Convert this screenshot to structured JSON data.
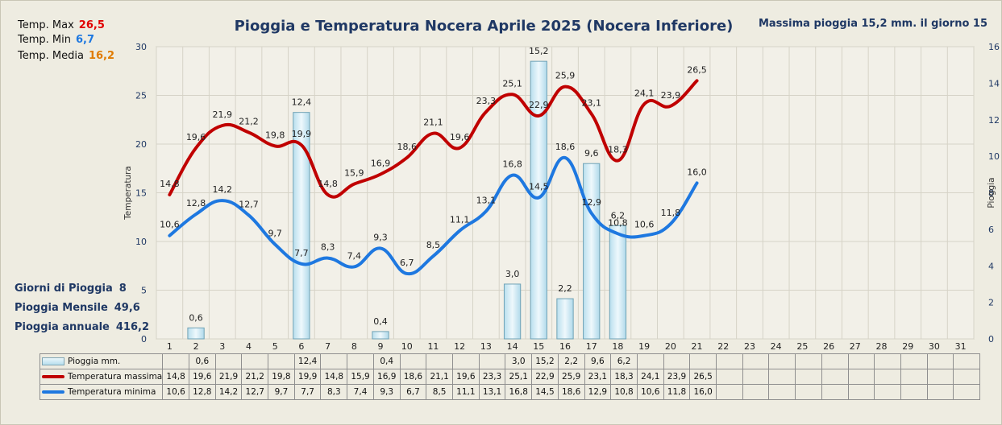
{
  "stats": {
    "max_label": "Temp. Max",
    "max_value": "26,5",
    "min_label": "Temp.  Min",
    "min_value": "6,7",
    "avg_label": "Temp. Media",
    "avg_value": "16,2"
  },
  "title": "Pioggia e Temperatura Nocera Aprile 2025 (Nocera Inferiore)",
  "max_rain": "Massima pioggia   15,2 mm. il giorno 15",
  "side": {
    "rain_days_label": "Giorni di Pioggia",
    "rain_days_value": "8",
    "monthly_label": "Pioggia Mensile",
    "monthly_value": "49,6",
    "annual_label": "Pioggia annuale",
    "annual_value": "416,2"
  },
  "colors": {
    "tmax": "#c00000",
    "tmin": "#1e78e0",
    "title": "#1f3864",
    "max_stat": "#e00000",
    "min_stat": "#1e78e0",
    "avg_stat": "#e07b00"
  },
  "chart_data": {
    "type": "bar+line",
    "days": [
      "1",
      "2",
      "3",
      "4",
      "5",
      "6",
      "7",
      "8",
      "9",
      "10",
      "11",
      "12",
      "13",
      "14",
      "15",
      "16",
      "17",
      "18",
      "19",
      "20",
      "21",
      "22",
      "23",
      "24",
      "25",
      "26",
      "27",
      "28",
      "29",
      "30",
      "31"
    ],
    "ylabel": "Temperatura",
    "y2label": "Pioggia",
    "ylim": [
      0,
      30
    ],
    "y2lim": [
      0,
      16
    ],
    "yticks": [
      "0",
      "5",
      "10",
      "15",
      "20",
      "25",
      "30"
    ],
    "y2ticks": [
      "0",
      "2",
      "4",
      "6",
      "8",
      "10",
      "12",
      "14",
      "16"
    ],
    "grid": true,
    "series": [
      {
        "name": "Pioggia mm.",
        "kind": "bar",
        "axis": "right",
        "values": [
          null,
          0.6,
          null,
          null,
          null,
          12.4,
          null,
          null,
          0.4,
          null,
          null,
          null,
          null,
          3.0,
          15.2,
          2.2,
          9.6,
          6.2,
          null,
          null,
          null,
          null,
          null,
          null,
          null,
          null,
          null,
          null,
          null,
          null,
          null
        ],
        "labels": [
          "",
          "0,6",
          "",
          "",
          "",
          "12,4",
          "",
          "",
          "0,4",
          "",
          "",
          "",
          "",
          "3,0",
          "15,2",
          "2,2",
          "9,6",
          "6,2",
          "",
          "",
          "",
          "",
          "",
          "",
          "",
          "",
          "",
          "",
          "",
          "",
          ""
        ]
      },
      {
        "name": "Temperatura massima",
        "kind": "line",
        "axis": "left",
        "values": [
          14.8,
          19.6,
          21.9,
          21.2,
          19.8,
          19.9,
          14.8,
          15.9,
          16.9,
          18.6,
          21.1,
          19.6,
          23.3,
          25.1,
          22.9,
          25.9,
          23.1,
          18.3,
          24.1,
          23.9,
          26.5,
          null,
          null,
          null,
          null,
          null,
          null,
          null,
          null,
          null,
          null
        ],
        "labels": [
          "14,8",
          "19,6",
          "21,9",
          "21,2",
          "19,8",
          "19,9",
          "14,8",
          "15,9",
          "16,9",
          "18,6",
          "21,1",
          "19,6",
          "23,3",
          "25,1",
          "22,9",
          "25,9",
          "23,1",
          "18,3",
          "24,1",
          "23,9",
          "26,5",
          "",
          "",
          "",
          "",
          "",
          "",
          "",
          "",
          "",
          ""
        ]
      },
      {
        "name": "Temperatura minima",
        "kind": "line",
        "axis": "left",
        "values": [
          10.6,
          12.8,
          14.2,
          12.7,
          9.7,
          7.7,
          8.3,
          7.4,
          9.3,
          6.7,
          8.5,
          11.1,
          13.1,
          16.8,
          14.5,
          18.6,
          12.9,
          10.8,
          10.6,
          11.8,
          16.0,
          null,
          null,
          null,
          null,
          null,
          null,
          null,
          null,
          null,
          null
        ],
        "labels": [
          "10,6",
          "12,8",
          "14,2",
          "12,7",
          "9,7",
          "7,7",
          "8,3",
          "7,4",
          "9,3",
          "6,7",
          "8,5",
          "11,1",
          "13,1",
          "16,8",
          "14,5",
          "18,6",
          "12,9",
          "10,8",
          "10,6",
          "11,8",
          "16,0",
          "",
          "",
          "",
          "",
          "",
          "",
          "",
          "",
          "",
          ""
        ]
      }
    ]
  }
}
